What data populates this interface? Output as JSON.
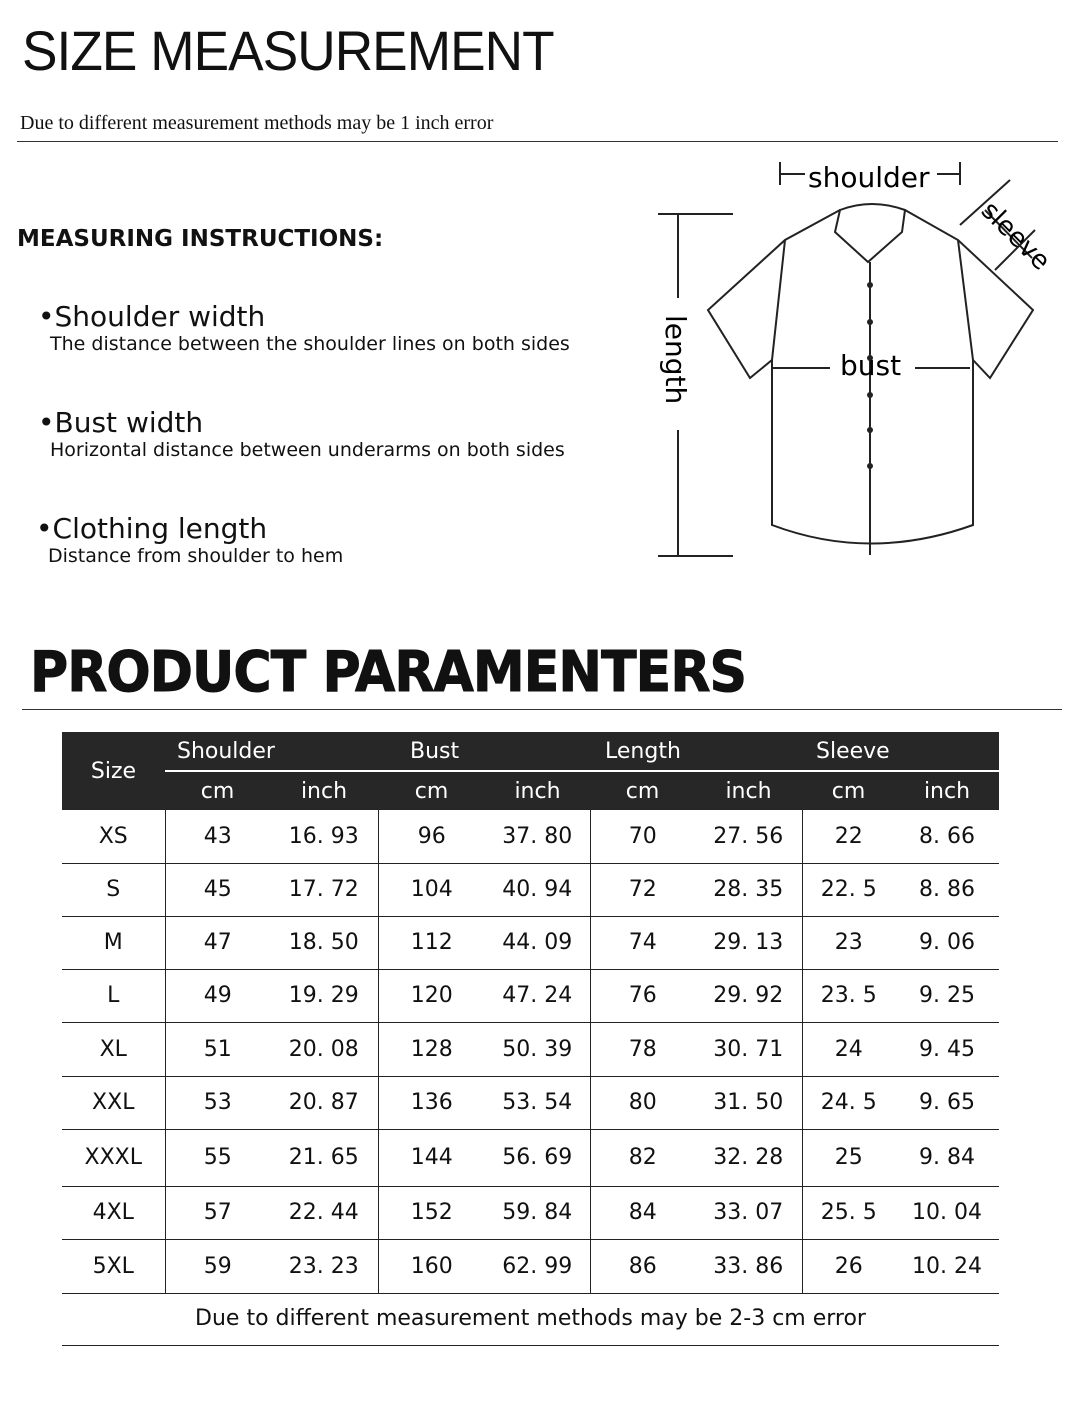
{
  "header": {
    "title": "SIZE MEASUREMENT",
    "subtitle": "Due to different measurement methods may be 1 inch error"
  },
  "instructions": {
    "heading": "MEASURING INSTRUCTIONS:",
    "items": [
      {
        "title": "•Shoulder width",
        "desc": "The distance between the shoulder lines on both sides"
      },
      {
        "title": "•Bust width",
        "desc": "Horizontal distance between underarms on both sides"
      },
      {
        "title": "•Clothing length",
        "desc": "Distance from shoulder to hem"
      }
    ]
  },
  "diagram": {
    "shoulder": "shoulder",
    "sleeve": "sleeve",
    "bust": "bust",
    "length": "length"
  },
  "params": {
    "title": "PRODUCT PARAMENTERS",
    "size_header": "Size",
    "groups": [
      "Shoulder",
      "Bust",
      "Length",
      "Sleeve"
    ],
    "units": [
      "cm",
      "inch",
      "cm",
      "inch",
      "cm",
      "inch",
      "cm",
      "inch"
    ],
    "rows": [
      [
        "XS",
        "43",
        "16. 93",
        "96",
        "37. 80",
        "70",
        "27. 56",
        "22",
        "8. 66"
      ],
      [
        "S",
        "45",
        "17. 72",
        "104",
        "40. 94",
        "72",
        "28. 35",
        "22. 5",
        "8. 86"
      ],
      [
        "M",
        "47",
        "18. 50",
        "112",
        "44. 09",
        "74",
        "29. 13",
        "23",
        "9. 06"
      ],
      [
        "L",
        "49",
        "19. 29",
        "120",
        "47. 24",
        "76",
        "29. 92",
        "23. 5",
        "9. 25"
      ],
      [
        "XL",
        "51",
        "20. 08",
        "128",
        "50. 39",
        "78",
        "30. 71",
        "24",
        "9. 45"
      ],
      [
        "XXL",
        "53",
        "20. 87",
        "136",
        "53. 54",
        "80",
        "31. 50",
        "24. 5",
        "9. 65"
      ],
      [
        "XXXL",
        "55",
        "21. 65",
        "144",
        "56. 69",
        "82",
        "32. 28",
        "25",
        "9. 84"
      ],
      [
        "4XL",
        "57",
        "22. 44",
        "152",
        "59. 84",
        "84",
        "33. 07",
        "25. 5",
        "10. 04"
      ],
      [
        "5XL",
        "59",
        "23. 23",
        "160",
        "62. 99",
        "86",
        "33. 86",
        "26",
        "10. 24"
      ]
    ],
    "footnote": "Due to different measurement methods may be 2-3 cm error"
  }
}
